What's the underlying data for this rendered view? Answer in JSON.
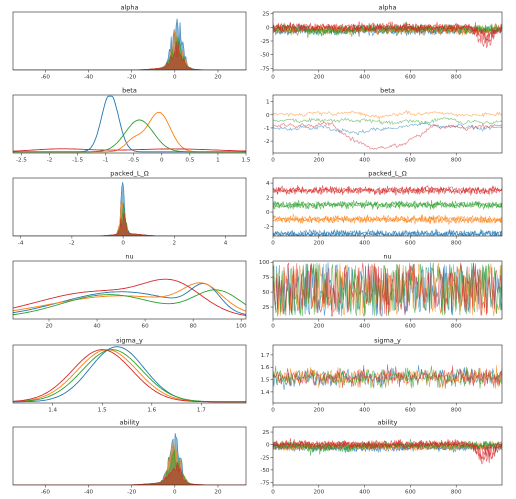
{
  "chart_data": [
    {
      "type": "area",
      "title": "alpha",
      "x_ticks": [
        -60,
        -40,
        -20,
        0,
        20
      ],
      "xlim": [
        -75,
        33
      ],
      "ylim": [
        0,
        1
      ],
      "shape": "spike",
      "center": 1,
      "width": 2.4,
      "tail": 7,
      "tail_side": -1
    },
    {
      "type": "line",
      "title": "alpha",
      "x_ticks": [
        0,
        200,
        400,
        600,
        800
      ],
      "y_ticks": [
        25,
        0,
        -25,
        -50,
        -75
      ],
      "xlim": [
        0,
        1000
      ],
      "ylim": [
        -78,
        28
      ],
      "kind": "dense",
      "mean": -3,
      "spread": 12,
      "dip": -45,
      "dip_at": 930
    },
    {
      "type": "line",
      "title": "beta",
      "x_ticks": [
        -2.5,
        -2.0,
        -1.5,
        -1.0,
        -0.5,
        0.0,
        0.5,
        1.0,
        1.5
      ],
      "xlim": [
        -2.65,
        1.5
      ],
      "ylim": [
        0,
        1
      ],
      "kind": "density",
      "series": [
        {
          "peaks": [
            [
              -0.92,
              0.15,
              1.0
            ]
          ]
        },
        {
          "peaks": [
            [
              -0.05,
              0.2,
              0.68
            ],
            [
              -0.5,
              0.15,
              0.2
            ]
          ]
        },
        {
          "peaks": [
            [
              -0.4,
              0.25,
              0.55
            ]
          ]
        },
        {
          "peaks": [
            [
              -1.8,
              0.5,
              0.05
            ],
            [
              0.2,
              0.8,
              0.05
            ]
          ]
        }
      ]
    },
    {
      "type": "line",
      "title": "beta",
      "x_ticks": [
        0,
        200,
        400,
        600,
        800
      ],
      "y_ticks": [
        1,
        0,
        -1,
        -2
      ],
      "xlim": [
        0,
        1000
      ],
      "ylim": [
        -2.9,
        1.5
      ],
      "kind": "walk",
      "series": [
        {
          "level": -0.9
        },
        {
          "level": 0.1
        },
        {
          "level": -0.4
        },
        {
          "level": -0.8,
          "dip": -2.3
        }
      ]
    },
    {
      "type": "area",
      "title": "packed_L_Ω",
      "x_ticks": [
        -4,
        -2,
        0,
        2,
        4
      ],
      "xlim": [
        -4.3,
        4.8
      ],
      "ylim": [
        0,
        1
      ],
      "shape": "spike",
      "center": 0,
      "width": 0.09,
      "tail": 0.5,
      "tail_side": 1
    },
    {
      "type": "line",
      "title": "packed_L_Ω",
      "x_ticks": [
        0,
        200,
        400,
        600,
        800
      ],
      "y_ticks": [
        4,
        2,
        0,
        -2
      ],
      "xlim": [
        0,
        1000
      ],
      "ylim": [
        -3.3,
        4.7
      ],
      "kind": "dense",
      "mean": 0,
      "spread": 0.8,
      "dip": 0,
      "dip_at": 0
    },
    {
      "type": "line",
      "title": "nu",
      "x_ticks": [
        20,
        40,
        60,
        80,
        100
      ],
      "xlim": [
        5,
        102
      ],
      "ylim": [
        0,
        1
      ],
      "kind": "density",
      "series": [
        {
          "peaks": [
            [
              85,
              6,
              0.42
            ],
            [
              50,
              25,
              0.45
            ]
          ]
        },
        {
          "peaks": [
            [
              84,
              8,
              0.4
            ],
            [
              50,
              30,
              0.38
            ]
          ]
        },
        {
          "peaks": [
            [
              90,
              10,
              0.45
            ],
            [
              45,
              20,
              0.4
            ]
          ]
        },
        {
          "peaks": [
            [
              72,
              12,
              0.45
            ],
            [
              40,
              25,
              0.45
            ]
          ]
        }
      ]
    },
    {
      "type": "line",
      "title": "nu",
      "x_ticks": [
        0,
        200,
        400,
        600,
        800
      ],
      "y_ticks": [
        100,
        75,
        50,
        25
      ],
      "xlim": [
        0,
        1000
      ],
      "ylim": [
        5,
        102
      ],
      "kind": "uniform"
    },
    {
      "type": "line",
      "title": "sigma_y",
      "x_ticks": [
        1.4,
        1.5,
        1.6,
        1.7
      ],
      "xlim": [
        1.32,
        1.79
      ],
      "ylim": [
        0,
        1
      ],
      "kind": "density",
      "series": [
        {
          "peaks": [
            [
              1.53,
              0.055,
              0.95
            ]
          ]
        },
        {
          "peaks": [
            [
              1.51,
              0.06,
              0.9
            ]
          ]
        },
        {
          "peaks": [
            [
              1.52,
              0.06,
              0.9
            ]
          ]
        },
        {
          "peaks": [
            [
              1.5,
              0.06,
              0.9
            ]
          ]
        }
      ]
    },
    {
      "type": "line",
      "title": "sigma_y",
      "x_ticks": [
        0,
        200,
        400,
        600,
        800
      ],
      "y_ticks": [
        1.7,
        1.6,
        1.5,
        1.4
      ],
      "xlim": [
        0,
        1000
      ],
      "ylim": [
        1.31,
        1.78
      ],
      "kind": "noise",
      "mean": 1.52,
      "spread": 0.06
    },
    {
      "type": "area",
      "title": "ability",
      "x_ticks": [
        -60,
        -40,
        -20,
        0,
        20
      ],
      "xlim": [
        -75,
        33
      ],
      "ylim": [
        0,
        1
      ],
      "shape": "spike",
      "center": 0,
      "width": 2.5,
      "tail": 8,
      "tail_side": -1
    },
    {
      "type": "line",
      "title": "ability",
      "x_ticks": [
        0,
        200,
        400,
        600,
        800
      ],
      "y_ticks": [
        25,
        0,
        -25,
        -50,
        -75
      ],
      "xlim": [
        0,
        1000
      ],
      "ylim": [
        -80,
        35
      ],
      "kind": "dense",
      "mean": -2,
      "spread": 12,
      "dip": -50,
      "dip_at": 930
    }
  ],
  "palette": {
    "blue": "#1f77b4",
    "orange": "#ff7f0e",
    "green": "#2ca02c",
    "red": "#d62728"
  }
}
